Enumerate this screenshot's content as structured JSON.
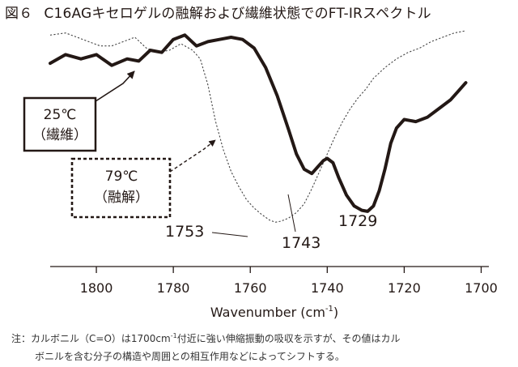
{
  "figure_label": "図６",
  "figure_title": "C16AGキセロゲルの融解および繊維状態でのFT-IRスペクトル",
  "note": {
    "prefix": "注：",
    "line1_a": "カルボニル（C=O）は1700cm",
    "line1_sup": "-1",
    "line1_b": "付近に強い伸縮振動の吸収を示すが、その値はカル",
    "line2": "ボニルを含む分子の構造や周囲との相互作用などによってシフトする。"
  },
  "colors": {
    "ink": "#231815",
    "thin": "#444444"
  },
  "chart_data": {
    "type": "line",
    "xlabel": "Wavenumber (cm",
    "xlabel_sup": "-1",
    "xlabel_end": ")",
    "x_reversed": true,
    "xlim": [
      1812,
      1698
    ],
    "ylim": [
      0,
      1
    ],
    "y_axis_shown": false,
    "grid": false,
    "x_ticks": [
      1800,
      1780,
      1760,
      1740,
      1720,
      1700
    ],
    "series": [
      {
        "id": "fiber",
        "label": "25℃\n（繊維）",
        "label_line1": "25℃",
        "label_line2": "（繊維）",
        "style": "thick-solid",
        "x": [
          1812,
          1808,
          1804,
          1800,
          1796,
          1792,
          1789,
          1786,
          1783,
          1780,
          1777,
          1774,
          1771,
          1768,
          1765,
          1762,
          1759,
          1756,
          1753,
          1750,
          1748,
          1746,
          1744,
          1742.5,
          1741,
          1740,
          1738.5,
          1737,
          1735,
          1733,
          1731,
          1729.5,
          1728,
          1726.5,
          1725,
          1723.5,
          1722,
          1720,
          1717,
          1714,
          1711,
          1708,
          1706,
          1704
        ],
        "y": [
          0.85,
          0.89,
          0.87,
          0.89,
          0.84,
          0.87,
          0.86,
          0.91,
          0.9,
          0.96,
          0.98,
          0.93,
          0.95,
          0.96,
          0.97,
          0.96,
          0.92,
          0.83,
          0.7,
          0.54,
          0.43,
          0.36,
          0.34,
          0.37,
          0.4,
          0.41,
          0.39,
          0.32,
          0.24,
          0.19,
          0.17,
          0.165,
          0.19,
          0.26,
          0.36,
          0.48,
          0.55,
          0.59,
          0.58,
          0.6,
          0.64,
          0.68,
          0.72,
          0.76
        ]
      },
      {
        "id": "melt",
        "label": "79℃\n（融解）",
        "label_line1": "79℃",
        "label_line2": "（融解）",
        "style": "thin-dashed",
        "x": [
          1812,
          1808,
          1805,
          1802,
          1799,
          1796,
          1793,
          1790,
          1787,
          1784,
          1781,
          1778,
          1775,
          1773,
          1771,
          1769,
          1767,
          1765,
          1763,
          1761,
          1759,
          1757,
          1755,
          1753.5,
          1752,
          1750,
          1748,
          1746,
          1744,
          1742,
          1740,
          1738,
          1736,
          1734,
          1732,
          1730,
          1728,
          1725,
          1722,
          1719,
          1716,
          1713,
          1710,
          1707,
          1704
        ],
        "y": [
          0.98,
          0.99,
          0.97,
          0.95,
          0.93,
          0.93,
          0.95,
          0.97,
          0.92,
          0.9,
          0.91,
          0.94,
          0.91,
          0.87,
          0.75,
          0.58,
          0.45,
          0.35,
          0.28,
          0.22,
          0.18,
          0.15,
          0.125,
          0.115,
          0.12,
          0.135,
          0.16,
          0.2,
          0.27,
          0.35,
          0.43,
          0.51,
          0.58,
          0.64,
          0.69,
          0.73,
          0.78,
          0.83,
          0.87,
          0.9,
          0.92,
          0.95,
          0.97,
          0.99,
          1.0
        ]
      }
    ],
    "annotations": [
      {
        "id": "peak-1753",
        "text": "1753",
        "series": "melt",
        "x": 1753.5
      },
      {
        "id": "peak-1743",
        "text": "1743",
        "series": "fiber",
        "x": 1744
      },
      {
        "id": "peak-1729",
        "text": "1729",
        "series": "fiber",
        "x": 1729.5
      }
    ]
  }
}
